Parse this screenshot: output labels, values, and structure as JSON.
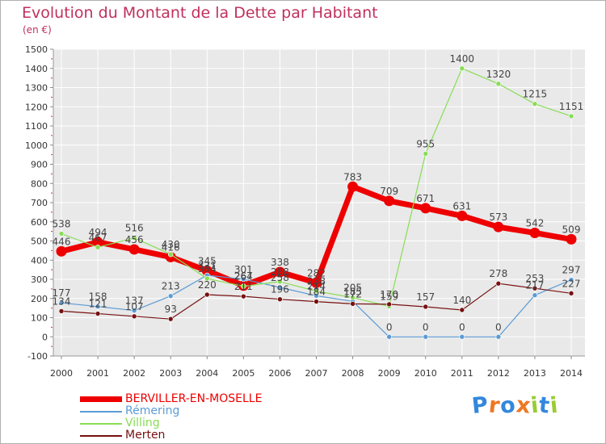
{
  "chart": {
    "title": "Evolution du Montant de la Dette par Habitant",
    "subtitle": "(en €)"
  },
  "chart_data": {
    "type": "line",
    "title": "Evolution du Montant de la Dette par Habitant",
    "subtitle": "(en €)",
    "xlabel": "",
    "ylabel": "",
    "x": [
      "2000",
      "2001",
      "2002",
      "2003",
      "2004",
      "2005",
      "2006",
      "2007",
      "2008",
      "2009",
      "2010",
      "2011",
      "2012",
      "2013",
      "2014"
    ],
    "ylim": [
      -100,
      1500
    ],
    "yticks": [
      -100,
      0,
      100,
      200,
      300,
      400,
      500,
      600,
      700,
      800,
      900,
      1000,
      1100,
      1200,
      1300,
      1400,
      1500
    ],
    "grid": true,
    "legend_position": "bottom-left",
    "series": [
      {
        "name": "BERVILLER-EN-MOSELLE",
        "color": "#ee0000",
        "values": [
          446,
          494,
          456,
          416,
          345,
          267,
          338,
          282,
          783,
          709,
          671,
          631,
          573,
          542,
          509
        ]
      },
      {
        "name": "Rémering",
        "color": "#5b9bd5",
        "values": [
          177,
          158,
          137,
          213,
          321,
          301,
          258,
          214,
          185,
          0,
          0,
          0,
          0,
          217,
          297
        ]
      },
      {
        "name": "Villing",
        "color": "#88dd55",
        "values": [
          538,
          467,
          516,
          430,
          304,
          264,
          288,
          238,
          205,
          159,
          955,
          1400,
          1320,
          1215,
          1151
        ]
      },
      {
        "name": "Merten",
        "color": "#771111",
        "values": [
          134,
          121,
          107,
          93,
          220,
          211,
          196,
          184,
          172,
          170,
          157,
          140,
          278,
          253,
          227
        ]
      }
    ]
  },
  "legend": {
    "items": [
      {
        "label": "BERVILLER-EN-MOSELLE",
        "color": "#ee0000"
      },
      {
        "label": "Rémering",
        "color": "#5b9bd5"
      },
      {
        "label": "Villing",
        "color": "#88dd55"
      },
      {
        "label": "Merten",
        "color": "#771111"
      }
    ]
  },
  "logo": {
    "text": "Proxiti",
    "colors": [
      "#3388dd",
      "#ee7722",
      "#3388dd",
      "#ee7722",
      "#99cc33",
      "#3388dd",
      "#99cc33"
    ]
  }
}
